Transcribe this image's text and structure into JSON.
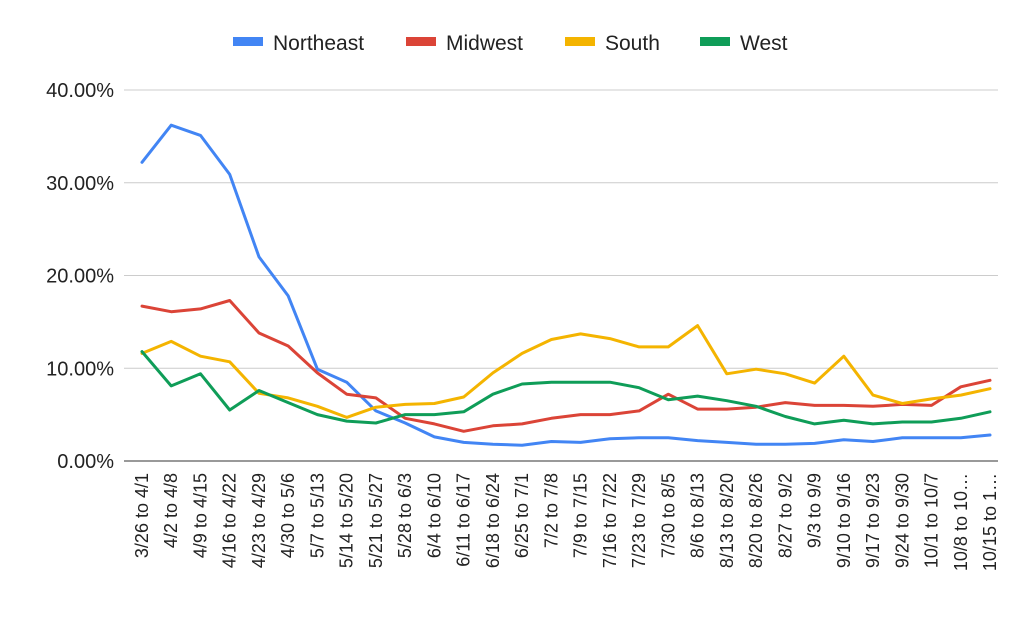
{
  "chart_data": {
    "type": "line",
    "title": "",
    "xlabel": "",
    "ylabel": "",
    "ylim": [
      0,
      40
    ],
    "y_ticks": [
      0,
      10,
      20,
      30,
      40
    ],
    "y_tick_labels": [
      "0.00%",
      "10.00%",
      "20.00%",
      "30.00%",
      "40.00%"
    ],
    "grid": true,
    "legend_position": "top",
    "categories": [
      "3/26 to 4/1",
      "4/2 to 4/8",
      "4/9 to 4/15",
      "4/16 to 4/22",
      "4/23 to 4/29",
      "4/30 to 5/6",
      "5/7 to 5/13",
      "5/14 to 5/20",
      "5/21 to 5/27",
      "5/28 to 6/3",
      "6/4 to 6/10",
      "6/11 to 6/17",
      "6/18 to 6/24",
      "6/25 to 7/1",
      "7/2 to 7/8",
      "7/9 to 7/15",
      "7/16 to 7/22",
      "7/23 to 7/29",
      "7/30 to 8/5",
      "8/6 to 8/13",
      "8/13 to 8/20",
      "8/20 to 8/26",
      "8/27 to 9/2",
      "9/3 to 9/9",
      "9/10 to 9/16",
      "9/17 to 9/23",
      "9/24 to 9/30",
      "10/1 to 10/7",
      "10/8 to 10…",
      "10/15 to 1…"
    ],
    "series": [
      {
        "name": "Northeast",
        "color": "#4285f4",
        "values": [
          32.2,
          36.2,
          35.1,
          30.9,
          22.0,
          17.8,
          9.9,
          8.5,
          5.4,
          4.1,
          2.6,
          2.0,
          1.8,
          1.7,
          2.1,
          2.0,
          2.4,
          2.5,
          2.5,
          2.2,
          2.0,
          1.8,
          1.8,
          1.9,
          2.3,
          2.1,
          2.5,
          2.5,
          2.5,
          2.8
        ]
      },
      {
        "name": "Midwest",
        "color": "#db4437",
        "values": [
          16.7,
          16.1,
          16.4,
          17.3,
          13.8,
          12.4,
          9.5,
          7.2,
          6.8,
          4.6,
          4.0,
          3.2,
          3.8,
          4.0,
          4.6,
          5.0,
          5.0,
          5.4,
          7.2,
          5.6,
          5.6,
          5.8,
          6.3,
          6.0,
          6.0,
          5.9,
          6.1,
          6.0,
          8.0,
          8.7
        ]
      },
      {
        "name": "South",
        "color": "#f4b400",
        "values": [
          11.6,
          12.9,
          11.3,
          10.7,
          7.3,
          6.8,
          5.9,
          4.7,
          5.8,
          6.1,
          6.2,
          6.9,
          9.5,
          11.6,
          13.1,
          13.7,
          13.2,
          12.3,
          12.3,
          14.6,
          9.4,
          9.9,
          9.4,
          8.4,
          11.3,
          7.1,
          6.2,
          6.7,
          7.1,
          7.8
        ]
      },
      {
        "name": "West",
        "color": "#0f9d58",
        "values": [
          11.8,
          8.1,
          9.4,
          5.5,
          7.6,
          6.3,
          5.0,
          4.3,
          4.1,
          5.0,
          5.0,
          5.3,
          7.2,
          8.3,
          8.5,
          8.5,
          8.5,
          7.9,
          6.6,
          7.0,
          6.5,
          5.9,
          4.8,
          4.0,
          4.4,
          4.0,
          4.2,
          4.2,
          4.6,
          5.3
        ]
      }
    ]
  }
}
